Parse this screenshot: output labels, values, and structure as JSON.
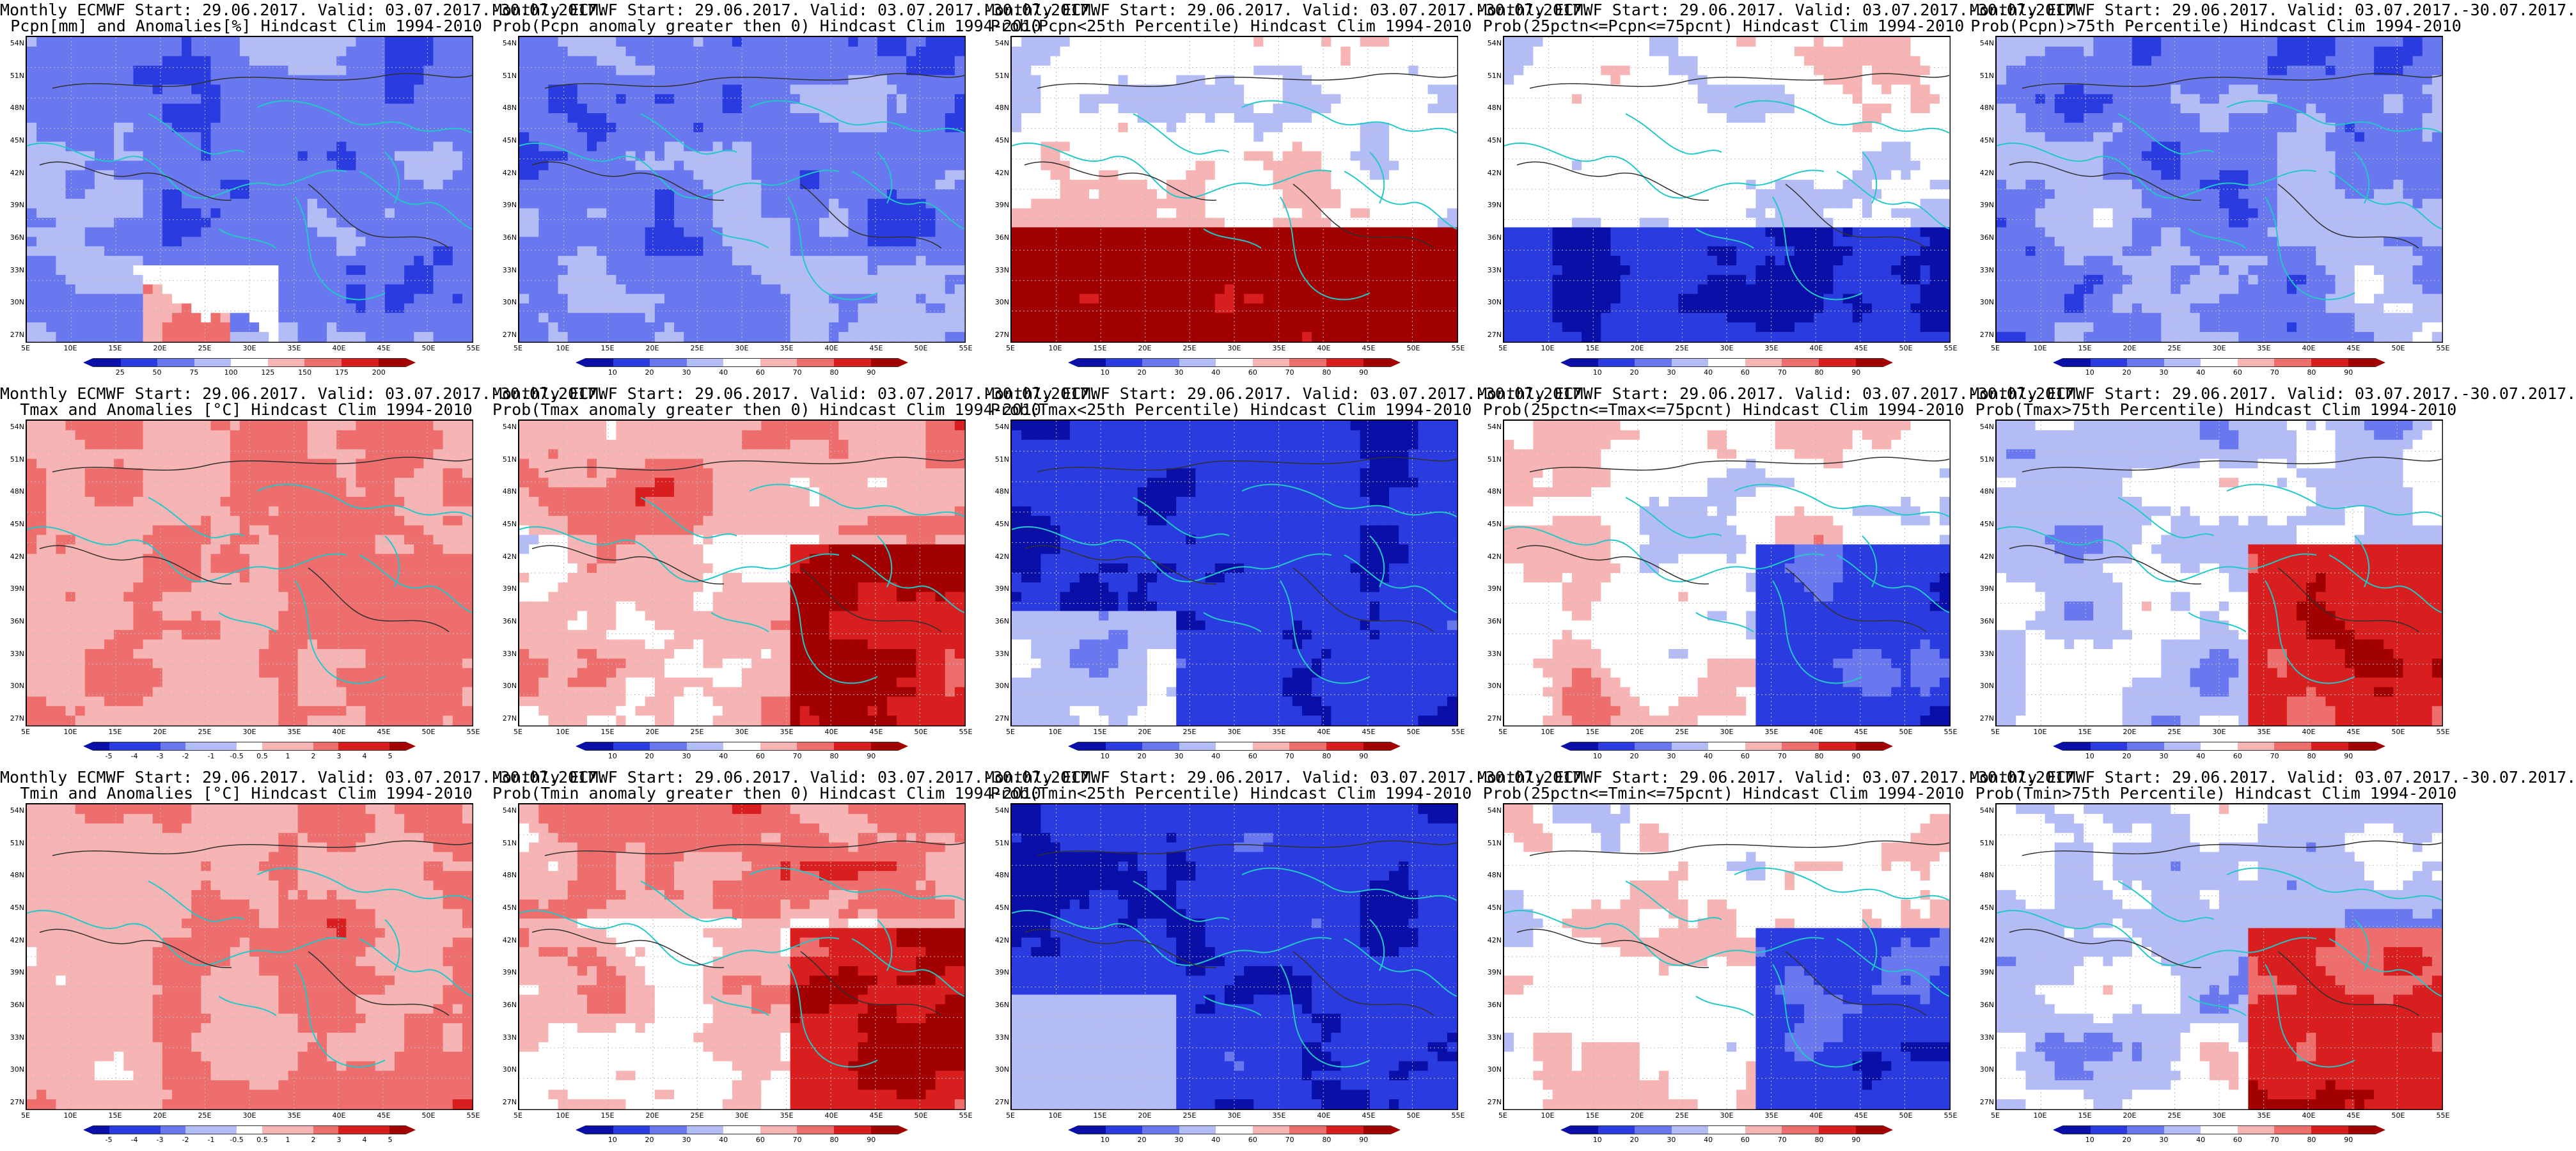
{
  "chart_data": {
    "type": "heatmap",
    "panels": [
      {
        "title_line1": "Monthly ECMWF Start: 29.06.2017. Valid: 03.07.2017.-30.07.2017.",
        "title_line2": "Pcpn[mm] and Anomalies[%] Hindcast Clim 1994-2010",
        "colorbar_labels": [
          "25",
          "50",
          "75",
          "100",
          "125",
          "150",
          "175",
          "200"
        ],
        "palette": "bwr",
        "pattern": "precip_anom"
      },
      {
        "title_line1": "Monthly ECMWF Start: 29.06.2017. Valid: 03.07.2017.-30.07.2017.",
        "title_line2": "Prob(Pcpn anomaly greater then 0) Hindcast Clim 1994-2010",
        "colorbar_labels": [
          "10",
          "20",
          "30",
          "40",
          "60",
          "70",
          "80",
          "90"
        ],
        "palette": "bwr",
        "pattern": "mostly_blue"
      },
      {
        "title_line1": "Monthly ECMWF Start: 29.06.2017. Valid: 03.07.2017.-30.07.2017.",
        "title_line2": "Prob(Pcpn<25th Percentile) Hindcast Clim 1994-2010",
        "colorbar_labels": [
          "10",
          "20",
          "30",
          "40",
          "60",
          "70",
          "80",
          "90"
        ],
        "palette": "bwr",
        "pattern": "red_south"
      },
      {
        "title_line1": "Monthly ECMWF Start: 29.06.2017. Valid: 03.07.2017.-30.07.2017.",
        "title_line2": "Prob(25pctn<=Pcpn<=75pcnt) Hindcast Clim 1994-2010",
        "colorbar_labels": [
          "10",
          "20",
          "30",
          "40",
          "60",
          "70",
          "80",
          "90"
        ],
        "palette": "bwr",
        "pattern": "blue_south"
      },
      {
        "title_line1": "Monthly ECMWF Start: 29.06.2017. Valid: 03.07.2017.-30.07.2017.",
        "title_line2": "Prob(Pcpn)>75th Percentile) Hindcast Clim 1994-2010",
        "colorbar_labels": [
          "10",
          "20",
          "30",
          "40",
          "60",
          "70",
          "80",
          "90"
        ],
        "palette": "bwr",
        "pattern": "mostly_blue"
      },
      {
        "title_line1": "Monthly ECMWF Start: 29.06.2017. Valid: 03.07.2017.-30.07.2017.",
        "title_line2": "Tmax and Anomalies [°C] Hindcast Clim 1994-2010",
        "colorbar_labels": [
          "-5",
          "-4",
          "-3",
          "-2",
          "-1",
          "-0.5",
          "0.5",
          "1",
          "2",
          "3",
          "4",
          "5"
        ],
        "palette": "bwr",
        "pattern": "light_red"
      },
      {
        "title_line1": "Monthly ECMWF Start: 29.06.2017. Valid: 03.07.2017.-30.07.2017.",
        "title_line2": "Prob(Tmax anomaly greater then 0) Hindcast Clim 1994-2010",
        "colorbar_labels": [
          "10",
          "20",
          "30",
          "40",
          "60",
          "70",
          "80",
          "90"
        ],
        "palette": "bwr",
        "pattern": "red_east"
      },
      {
        "title_line1": "Monthly ECMWF Start: 29.06.2017. Valid: 03.07.2017.-30.07.2017.",
        "title_line2": "Prob(Tmax<25th Percentile) Hindcast Clim 1994-2010",
        "colorbar_labels": [
          "10",
          "20",
          "30",
          "40",
          "60",
          "70",
          "80",
          "90"
        ],
        "palette": "bwr",
        "pattern": "deep_blue"
      },
      {
        "title_line1": "Monthly ECMWF Start: 29.06.2017. Valid: 03.07.2017.-30.07.2017.",
        "title_line2": "Prob(25pctn<=Tmax<=75pcnt) Hindcast Clim 1994-2010",
        "colorbar_labels": [
          "10",
          "20",
          "30",
          "40",
          "60",
          "70",
          "80",
          "90"
        ],
        "palette": "bwr",
        "pattern": "mixed_se_blue"
      },
      {
        "title_line1": "Monthly ECMWF Start: 29.06.2017. Valid: 03.07.2017.-30.07.2017.",
        "title_line2": "Prob(Tmax>75th Percentile) Hindcast Clim 1994-2010",
        "colorbar_labels": [
          "10",
          "20",
          "30",
          "40",
          "60",
          "70",
          "80",
          "90"
        ],
        "palette": "bwr",
        "pattern": "red_se"
      },
      {
        "title_line1": "Monthly ECMWF Start: 29.06.2017. Valid: 03.07.2017.-30.07.2017.",
        "title_line2": "Tmin and Anomalies [°C] Hindcast Clim 1994-2010",
        "colorbar_labels": [
          "-5",
          "-4",
          "-3",
          "-2",
          "-1",
          "-0.5",
          "0.5",
          "1",
          "2",
          "3",
          "4",
          "5"
        ],
        "palette": "bwr",
        "pattern": "light_red"
      },
      {
        "title_line1": "Monthly ECMWF Start: 29.06.2017. Valid: 03.07.2017.-30.07.2017.",
        "title_line2": "Prob(Tmin anomaly greater then 0) Hindcast Clim 1994-2010",
        "colorbar_labels": [
          "10",
          "20",
          "30",
          "40",
          "60",
          "70",
          "80",
          "90"
        ],
        "palette": "bwr",
        "pattern": "red_east"
      },
      {
        "title_line1": "Monthly ECMWF Start: 29.06.2017. Valid: 03.07.2017.-30.07.2017.",
        "title_line2": "Prob(Tmin<25th Percentile) Hindcast Clim 1994-2010",
        "colorbar_labels": [
          "10",
          "20",
          "30",
          "40",
          "60",
          "70",
          "80",
          "90"
        ],
        "palette": "bwr",
        "pattern": "deep_blue"
      },
      {
        "title_line1": "Monthly ECMWF Start: 29.06.2017. Valid: 03.07.2017.-30.07.2017.",
        "title_line2": "Prob(25pctn<=Tmin<=75pcnt) Hindcast Clim 1994-2010",
        "colorbar_labels": [
          "10",
          "20",
          "30",
          "40",
          "60",
          "70",
          "80",
          "90"
        ],
        "palette": "bwr",
        "pattern": "mixed_se_blue"
      },
      {
        "title_line1": "Monthly ECMWF Start: 29.06.2017. Valid: 03.07.2017.-30.07.2017.",
        "title_line2": "Prob(Tmin>75th Percentile) Hindcast Clim 1994-2010",
        "colorbar_labels": [
          "10",
          "20",
          "30",
          "40",
          "60",
          "70",
          "80",
          "90"
        ],
        "palette": "bwr",
        "pattern": "red_se"
      }
    ],
    "y_ticks": [
      "54N",
      "51N",
      "48N",
      "45N",
      "42N",
      "39N",
      "36N",
      "33N",
      "30N",
      "27N"
    ],
    "x_ticks": [
      "5E",
      "10E",
      "15E",
      "20E",
      "25E",
      "30E",
      "35E",
      "40E",
      "45E",
      "50E",
      "55E"
    ],
    "colors": {
      "deep_blue": "#0a0fa8",
      "blue": "#2a3ce0",
      "mid_blue": "#6a78f0",
      "light_blue": "#b4bcf6",
      "white": "#ffffff",
      "light_red": "#f6b4b4",
      "mid_red": "#ee6e6e",
      "red": "#d81e1e",
      "deep_red": "#a20000",
      "coast": "#22c8c8",
      "contour": "#303030"
    }
  }
}
